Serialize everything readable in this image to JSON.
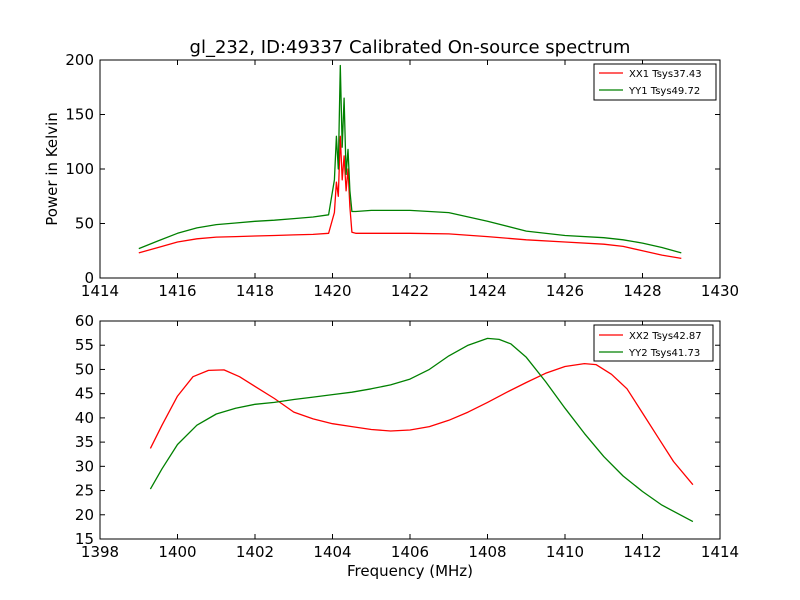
{
  "figure": {
    "title": "gl_232, ID:49337 Calibrated On-source spectrum"
  },
  "chart_data": [
    {
      "type": "line",
      "title": "gl_232, ID:49337 Calibrated On-source spectrum",
      "xlabel": "",
      "ylabel": "Power in Kelvin",
      "xlim": [
        1414,
        1430
      ],
      "ylim": [
        0,
        200
      ],
      "xticks": [
        "1414",
        "1416",
        "1418",
        "1420",
        "1422",
        "1424",
        "1426",
        "1428",
        "1430"
      ],
      "yticks": [
        "0",
        "50",
        "100",
        "150",
        "200"
      ],
      "grid": false,
      "legend_position": "top-right",
      "series": [
        {
          "name": "XX1 Tsys37.43",
          "color": "#ff0000",
          "x": [
            1415.0,
            1415.5,
            1416.0,
            1416.5,
            1417.0,
            1417.5,
            1418.0,
            1418.5,
            1419.0,
            1419.5,
            1419.9,
            1420.05,
            1420.1,
            1420.15,
            1420.2,
            1420.25,
            1420.3,
            1420.35,
            1420.4,
            1420.45,
            1420.5,
            1420.6,
            1421.0,
            1422.0,
            1423.0,
            1424.0,
            1425.0,
            1426.0,
            1427.0,
            1427.5,
            1428.0,
            1428.5,
            1429.0
          ],
          "y": [
            23,
            28,
            33,
            36,
            37.5,
            38,
            38.5,
            39,
            39.5,
            40,
            41,
            60,
            88,
            75,
            130,
            90,
            112,
            80,
            100,
            65,
            42,
            41,
            41,
            41,
            40.5,
            38,
            35,
            33,
            31,
            29,
            25,
            21,
            18
          ]
        },
        {
          "name": "YY1 Tsys49.72",
          "color": "#008000",
          "x": [
            1415.0,
            1415.5,
            1416.0,
            1416.5,
            1417.0,
            1417.5,
            1418.0,
            1418.5,
            1419.0,
            1419.5,
            1419.9,
            1420.05,
            1420.1,
            1420.15,
            1420.2,
            1420.25,
            1420.3,
            1420.35,
            1420.4,
            1420.45,
            1420.5,
            1420.6,
            1421.0,
            1422.0,
            1423.0,
            1424.0,
            1425.0,
            1426.0,
            1427.0,
            1427.5,
            1428.0,
            1428.5,
            1429.0
          ],
          "y": [
            27,
            34,
            41,
            46,
            49,
            50.5,
            52,
            53,
            54.5,
            56,
            58,
            90,
            130,
            100,
            195,
            120,
            165,
            95,
            118,
            80,
            61,
            61,
            62,
            62,
            60,
            52,
            43,
            39,
            37,
            35,
            32,
            28,
            23
          ]
        }
      ]
    },
    {
      "type": "line",
      "title": "",
      "xlabel": "Frequency (MHz)",
      "ylabel": "",
      "xlim": [
        1398,
        1414
      ],
      "ylim": [
        15,
        60
      ],
      "xticks": [
        "1398",
        "1400",
        "1402",
        "1404",
        "1406",
        "1408",
        "1410",
        "1412",
        "1414"
      ],
      "yticks": [
        "15",
        "20",
        "25",
        "30",
        "35",
        "40",
        "45",
        "50",
        "55",
        "60"
      ],
      "grid": false,
      "legend_position": "top-right",
      "series": [
        {
          "name": "XX2 Tsys42.87",
          "color": "#ff0000",
          "x": [
            1399.3,
            1399.6,
            1400.0,
            1400.4,
            1400.8,
            1401.2,
            1401.6,
            1402.0,
            1402.5,
            1403.0,
            1403.5,
            1404.0,
            1404.5,
            1405.0,
            1405.5,
            1406.0,
            1406.5,
            1407.0,
            1407.5,
            1408.0,
            1408.5,
            1409.0,
            1409.5,
            1410.0,
            1410.5,
            1410.8,
            1411.2,
            1411.6,
            1412.0,
            1412.4,
            1412.8,
            1413.3
          ],
          "y": [
            33.7,
            38.5,
            44.5,
            48.5,
            49.8,
            49.9,
            48.5,
            46.5,
            44,
            41.2,
            39.8,
            38.8,
            38.2,
            37.6,
            37.3,
            37.5,
            38.2,
            39.5,
            41.2,
            43.2,
            45.3,
            47.3,
            49.2,
            50.6,
            51.2,
            51,
            49,
            46,
            41,
            36,
            31,
            26.2
          ]
        },
        {
          "name": "YY2 Tsys41.73",
          "color": "#008000",
          "x": [
            1399.3,
            1399.6,
            1400.0,
            1400.5,
            1401.0,
            1401.5,
            1402.0,
            1402.5,
            1403.0,
            1403.5,
            1404.0,
            1404.5,
            1405.0,
            1405.5,
            1406.0,
            1406.5,
            1407.0,
            1407.5,
            1408.0,
            1408.3,
            1408.6,
            1409.0,
            1409.5,
            1410.0,
            1410.5,
            1411.0,
            1411.5,
            1412.0,
            1412.5,
            1413.3
          ],
          "y": [
            25.3,
            29.5,
            34.5,
            38.5,
            40.8,
            42,
            42.8,
            43.2,
            43.8,
            44.3,
            44.8,
            45.3,
            46,
            46.8,
            48,
            50,
            52.8,
            55,
            56.4,
            56.2,
            55.3,
            52.5,
            47.5,
            42,
            36.8,
            32,
            28,
            24.8,
            22,
            18.6
          ]
        }
      ]
    }
  ]
}
